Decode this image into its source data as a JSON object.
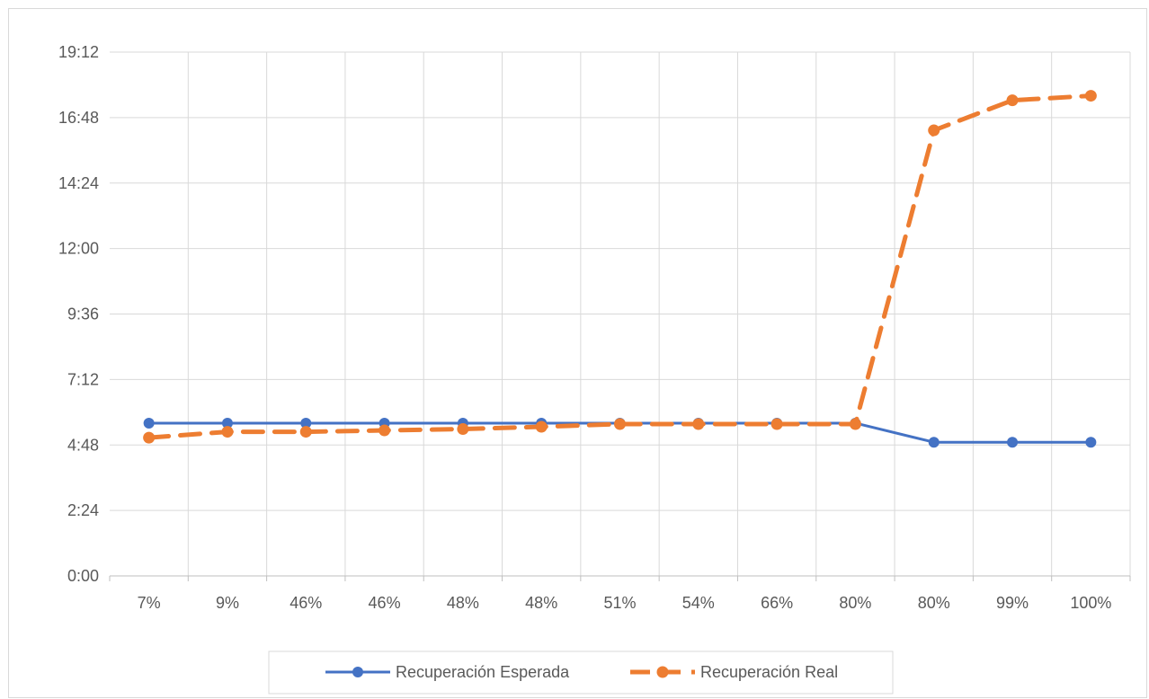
{
  "chart_data": {
    "type": "line",
    "title": "",
    "xlabel": "",
    "ylabel": "",
    "categories": [
      "7%",
      "9%",
      "46%",
      "46%",
      "48%",
      "48%",
      "51%",
      "54%",
      "66%",
      "80%",
      "80%",
      "99%",
      "100%"
    ],
    "y_unit": "minutes",
    "ylim": [
      0,
      1152
    ],
    "y_tick_values": [
      0,
      144,
      288,
      432,
      576,
      720,
      864,
      1008,
      1152
    ],
    "y_tick_labels": [
      "0:00",
      "2:24",
      "4:48",
      "7:12",
      "9:36",
      "12:00",
      "14:24",
      "16:48",
      "19:12"
    ],
    "grid": true,
    "legend_position": "bottom",
    "series": [
      {
        "name": "Recuperación Esperada",
        "color": "#4472C4",
        "style": "solid",
        "values": [
          5.6,
          5.6,
          5.6,
          5.6,
          5.6,
          5.6,
          5.6,
          5.6,
          5.6,
          5.6,
          4.9,
          4.9,
          4.9
        ],
        "values_minutes": [
          336,
          336,
          336,
          336,
          336,
          336,
          336,
          336,
          336,
          336,
          294,
          294,
          294
        ]
      },
      {
        "name": "Recuperación Real",
        "color": "#ED7D31",
        "style": "dashed",
        "values_minutes": [
          304,
          317,
          317,
          320,
          323,
          328,
          334,
          334,
          334,
          334,
          980,
          1046,
          1056
        ]
      }
    ]
  }
}
